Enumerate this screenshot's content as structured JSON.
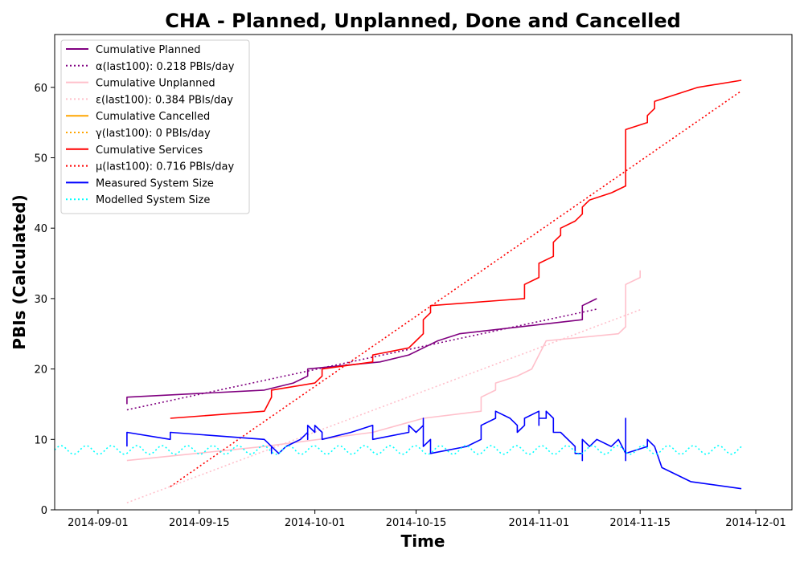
{
  "chart_data": {
    "type": "line",
    "title": "CHA - Planned, Unplanned, Done  and Cancelled",
    "xlabel": "Time",
    "ylabel": "PBIs (Calculated)",
    "xlim": [
      "2014-08-26",
      "2014-12-06"
    ],
    "ylim": [
      0,
      67.5
    ],
    "x_ticks": [
      "2014-09-01",
      "2014-09-15",
      "2014-10-01",
      "2014-10-15",
      "2014-11-01",
      "2014-11-15",
      "2014-12-01"
    ],
    "y_ticks": [
      0,
      10,
      20,
      30,
      40,
      50,
      60
    ],
    "legend_position": "top-left",
    "grid": false,
    "series": [
      {
        "name": "Cumulative Planned",
        "color": "#800080",
        "style": "solid",
        "points": [
          [
            "2014-09-05",
            15
          ],
          [
            "2014-09-05",
            16
          ],
          [
            "2014-09-24",
            17
          ],
          [
            "2014-09-28",
            18
          ],
          [
            "2014-09-30",
            19
          ],
          [
            "2014-09-30",
            20
          ],
          [
            "2014-10-10",
            21
          ],
          [
            "2014-10-14",
            22
          ],
          [
            "2014-10-16",
            23
          ],
          [
            "2014-10-18",
            24
          ],
          [
            "2014-10-21",
            25
          ],
          [
            "2014-11-07",
            27
          ],
          [
            "2014-11-07",
            29
          ],
          [
            "2014-11-09",
            30
          ]
        ]
      },
      {
        "name": "α(last100): 0.218 PBIs/day",
        "color": "#800080",
        "style": "dotted",
        "points": [
          [
            "2014-09-05",
            14.2
          ],
          [
            "2014-11-09",
            28.5
          ]
        ]
      },
      {
        "name": "Cumulative Unplanned",
        "color": "#ffc0cb",
        "style": "solid",
        "points": [
          [
            "2014-09-05",
            7
          ],
          [
            "2014-09-24",
            9
          ],
          [
            "2014-10-09",
            11
          ],
          [
            "2014-10-16",
            13
          ],
          [
            "2014-10-24",
            14
          ],
          [
            "2014-10-24",
            16
          ],
          [
            "2014-10-26",
            17
          ],
          [
            "2014-10-26",
            18
          ],
          [
            "2014-10-29",
            19
          ],
          [
            "2014-10-31",
            20
          ],
          [
            "2014-11-01",
            22
          ],
          [
            "2014-11-02",
            24
          ],
          [
            "2014-11-12",
            25
          ],
          [
            "2014-11-13",
            26
          ],
          [
            "2014-11-13",
            32
          ],
          [
            "2014-11-15",
            33
          ],
          [
            "2014-11-15",
            34
          ]
        ]
      },
      {
        "name": "ε(last100): 0.384 PBIs/day",
        "color": "#ffc0cb",
        "style": "dotted",
        "points": [
          [
            "2014-09-05",
            1
          ],
          [
            "2014-11-15",
            28.4
          ]
        ]
      },
      {
        "name": "Cumulative Cancelled",
        "color": "#ffa500",
        "style": "solid",
        "points": []
      },
      {
        "name": "γ(last100): 0 PBIs/day",
        "color": "#ffa500",
        "style": "dotted",
        "points": []
      },
      {
        "name": "Cumulative Services",
        "color": "#ff0000",
        "style": "solid",
        "points": [
          [
            "2014-09-11",
            13
          ],
          [
            "2014-09-24",
            14
          ],
          [
            "2014-09-25",
            16
          ],
          [
            "2014-09-25",
            17
          ],
          [
            "2014-10-01",
            18
          ],
          [
            "2014-10-02",
            19
          ],
          [
            "2014-10-02",
            20
          ],
          [
            "2014-10-09",
            21
          ],
          [
            "2014-10-09",
            22
          ],
          [
            "2014-10-14",
            23
          ],
          [
            "2014-10-15",
            24
          ],
          [
            "2014-10-16",
            25
          ],
          [
            "2014-10-16",
            27
          ],
          [
            "2014-10-17",
            28
          ],
          [
            "2014-10-17",
            29
          ],
          [
            "2014-10-30",
            30
          ],
          [
            "2014-10-30",
            32
          ],
          [
            "2014-11-01",
            33
          ],
          [
            "2014-11-01",
            35
          ],
          [
            "2014-11-03",
            36
          ],
          [
            "2014-11-03",
            38
          ],
          [
            "2014-11-04",
            39
          ],
          [
            "2014-11-04",
            40
          ],
          [
            "2014-11-06",
            41
          ],
          [
            "2014-11-07",
            42
          ],
          [
            "2014-11-07",
            43
          ],
          [
            "2014-11-08",
            44
          ],
          [
            "2014-11-11",
            45
          ],
          [
            "2014-11-13",
            46
          ],
          [
            "2014-11-13",
            50
          ],
          [
            "2014-11-13",
            54
          ],
          [
            "2014-11-16",
            55
          ],
          [
            "2014-11-16",
            56
          ],
          [
            "2014-11-17",
            57
          ],
          [
            "2014-11-17",
            58
          ],
          [
            "2014-11-23",
            60
          ],
          [
            "2014-11-29",
            61
          ]
        ]
      },
      {
        "name": "μ(last100): 0.716 PBIs/day",
        "color": "#ff0000",
        "style": "dotted",
        "points": [
          [
            "2014-09-11",
            3.3
          ],
          [
            "2014-11-29",
            59.5
          ]
        ]
      },
      {
        "name": "Measured System Size",
        "color": "#0000ff",
        "style": "solid",
        "points": [
          [
            "2014-09-05",
            9
          ],
          [
            "2014-09-05",
            11
          ],
          [
            "2014-09-11",
            10
          ],
          [
            "2014-09-11",
            11
          ],
          [
            "2014-09-24",
            10
          ],
          [
            "2014-09-25",
            9
          ],
          [
            "2014-09-25",
            8
          ],
          [
            "2014-09-25",
            9
          ],
          [
            "2014-09-26",
            8
          ],
          [
            "2014-09-27",
            9
          ],
          [
            "2014-09-29",
            10
          ],
          [
            "2014-09-30",
            11
          ],
          [
            "2014-09-30",
            10
          ],
          [
            "2014-09-30",
            12
          ],
          [
            "2014-10-01",
            11
          ],
          [
            "2014-10-01",
            12
          ],
          [
            "2014-10-02",
            11
          ],
          [
            "2014-10-02",
            10
          ],
          [
            "2014-10-06",
            11
          ],
          [
            "2014-10-09",
            12
          ],
          [
            "2014-10-09",
            10
          ],
          [
            "2014-10-14",
            11
          ],
          [
            "2014-10-14",
            12
          ],
          [
            "2014-10-15",
            11
          ],
          [
            "2014-10-16",
            12
          ],
          [
            "2014-10-16",
            13
          ],
          [
            "2014-10-16",
            9
          ],
          [
            "2014-10-17",
            10
          ],
          [
            "2014-10-17",
            8
          ],
          [
            "2014-10-22",
            9
          ],
          [
            "2014-10-24",
            10
          ],
          [
            "2014-10-24",
            12
          ],
          [
            "2014-10-26",
            13
          ],
          [
            "2014-10-26",
            14
          ],
          [
            "2014-10-28",
            13
          ],
          [
            "2014-10-29",
            12
          ],
          [
            "2014-10-29",
            11
          ],
          [
            "2014-10-30",
            12
          ],
          [
            "2014-10-30",
            13
          ],
          [
            "2014-11-01",
            14
          ],
          [
            "2014-11-01",
            12
          ],
          [
            "2014-11-01",
            13
          ],
          [
            "2014-11-02",
            13
          ],
          [
            "2014-11-02",
            14
          ],
          [
            "2014-11-03",
            13
          ],
          [
            "2014-11-03",
            11
          ],
          [
            "2014-11-04",
            11
          ],
          [
            "2014-11-06",
            9
          ],
          [
            "2014-11-06",
            8
          ],
          [
            "2014-11-07",
            8
          ],
          [
            "2014-11-07",
            7
          ],
          [
            "2014-11-07",
            10
          ],
          [
            "2014-11-08",
            9
          ],
          [
            "2014-11-09",
            10
          ],
          [
            "2014-11-11",
            9
          ],
          [
            "2014-11-12",
            10
          ],
          [
            "2014-11-13",
            8
          ],
          [
            "2014-11-13",
            13
          ],
          [
            "2014-11-13",
            7
          ],
          [
            "2014-11-13",
            8
          ],
          [
            "2014-11-16",
            9
          ],
          [
            "2014-11-16",
            10
          ],
          [
            "2014-11-17",
            9
          ],
          [
            "2014-11-18",
            6
          ],
          [
            "2014-11-22",
            4
          ],
          [
            "2014-11-29",
            3
          ]
        ]
      },
      {
        "name": "Modelled System Size",
        "color": "#00ffff",
        "style": "dotted",
        "wave": {
          "start": "2014-08-26",
          "end": "2014-11-29",
          "mean": 8.5,
          "amplitude": 0.6,
          "period_days": 3.5
        }
      }
    ]
  }
}
